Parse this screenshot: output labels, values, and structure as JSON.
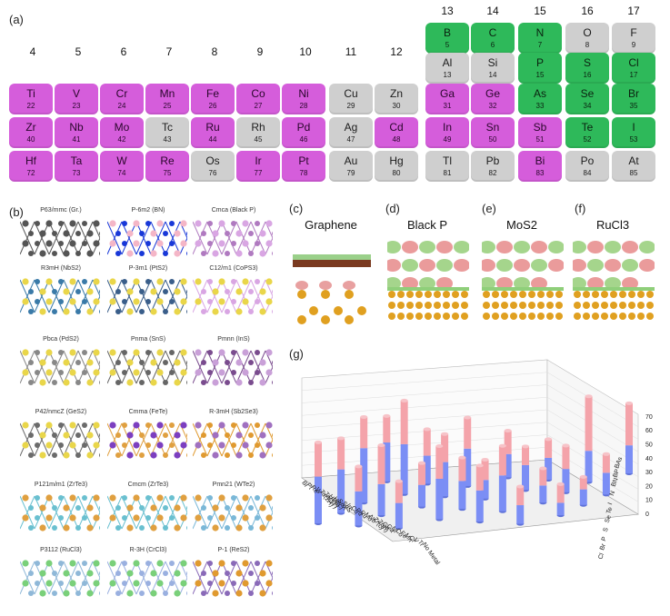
{
  "panels": {
    "a": "(a)",
    "b": "(b)",
    "c": "(c)",
    "d": "(d)",
    "e": "(e)",
    "f": "(f)",
    "g": "(g)"
  },
  "periodic_table": {
    "group_headers": [
      {
        "label": "4"
      },
      {
        "label": "5"
      },
      {
        "label": "6"
      },
      {
        "label": "7"
      },
      {
        "label": "8"
      },
      {
        "label": "9"
      },
      {
        "label": "10"
      },
      {
        "label": "11"
      },
      {
        "label": "12"
      },
      {
        "label": "13"
      },
      {
        "label": "14"
      },
      {
        "label": "15"
      },
      {
        "label": "16"
      },
      {
        "label": "17"
      }
    ],
    "elements": [
      {
        "symbol": "B",
        "number": "5",
        "category": "green"
      },
      {
        "symbol": "C",
        "number": "6",
        "category": "green"
      },
      {
        "symbol": "N",
        "number": "7",
        "category": "green"
      },
      {
        "symbol": "O",
        "number": "8",
        "category": "gray"
      },
      {
        "symbol": "F",
        "number": "9",
        "category": "gray"
      },
      {
        "symbol": "Al",
        "number": "13",
        "category": "gray"
      },
      {
        "symbol": "Si",
        "number": "14",
        "category": "gray"
      },
      {
        "symbol": "P",
        "number": "15",
        "category": "green"
      },
      {
        "symbol": "S",
        "number": "16",
        "category": "green"
      },
      {
        "symbol": "Cl",
        "number": "17",
        "category": "green"
      },
      {
        "symbol": "Ti",
        "number": "22",
        "category": "pink"
      },
      {
        "symbol": "V",
        "number": "23",
        "category": "pink"
      },
      {
        "symbol": "Cr",
        "number": "24",
        "category": "pink"
      },
      {
        "symbol": "Mn",
        "number": "25",
        "category": "pink"
      },
      {
        "symbol": "Fe",
        "number": "26",
        "category": "pink"
      },
      {
        "symbol": "Co",
        "number": "27",
        "category": "pink"
      },
      {
        "symbol": "Ni",
        "number": "28",
        "category": "pink"
      },
      {
        "symbol": "Cu",
        "number": "29",
        "category": "gray"
      },
      {
        "symbol": "Zn",
        "number": "30",
        "category": "gray"
      },
      {
        "symbol": "Ga",
        "number": "31",
        "category": "pink"
      },
      {
        "symbol": "Ge",
        "number": "32",
        "category": "pink"
      },
      {
        "symbol": "As",
        "number": "33",
        "category": "green"
      },
      {
        "symbol": "Se",
        "number": "34",
        "category": "green"
      },
      {
        "symbol": "Br",
        "number": "35",
        "category": "green"
      },
      {
        "symbol": "Zr",
        "number": "40",
        "category": "pink"
      },
      {
        "symbol": "Nb",
        "number": "41",
        "category": "pink"
      },
      {
        "symbol": "Mo",
        "number": "42",
        "category": "pink"
      },
      {
        "symbol": "Tc",
        "number": "43",
        "category": "gray"
      },
      {
        "symbol": "Ru",
        "number": "44",
        "category": "pink"
      },
      {
        "symbol": "Rh",
        "number": "45",
        "category": "gray"
      },
      {
        "symbol": "Pd",
        "number": "46",
        "category": "pink"
      },
      {
        "symbol": "Ag",
        "number": "47",
        "category": "gray"
      },
      {
        "symbol": "Cd",
        "number": "48",
        "category": "pink"
      },
      {
        "symbol": "In",
        "number": "49",
        "category": "pink"
      },
      {
        "symbol": "Sn",
        "number": "50",
        "category": "pink"
      },
      {
        "symbol": "Sb",
        "number": "51",
        "category": "pink"
      },
      {
        "symbol": "Te",
        "number": "52",
        "category": "green"
      },
      {
        "symbol": "I",
        "number": "53",
        "category": "green"
      },
      {
        "symbol": "Hf",
        "number": "72",
        "category": "pink"
      },
      {
        "symbol": "Ta",
        "number": "73",
        "category": "pink"
      },
      {
        "symbol": "W",
        "number": "74",
        "category": "pink"
      },
      {
        "symbol": "Re",
        "number": "75",
        "category": "pink"
      },
      {
        "symbol": "Os",
        "number": "76",
        "category": "gray"
      },
      {
        "symbol": "Ir",
        "number": "77",
        "category": "pink"
      },
      {
        "symbol": "Pt",
        "number": "78",
        "category": "pink"
      },
      {
        "symbol": "Au",
        "number": "79",
        "category": "gray"
      },
      {
        "symbol": "Hg",
        "number": "80",
        "category": "gray"
      },
      {
        "symbol": "Tl",
        "number": "81",
        "category": "gray"
      },
      {
        "symbol": "Pb",
        "number": "82",
        "category": "gray"
      },
      {
        "symbol": "Bi",
        "number": "83",
        "category": "pink"
      },
      {
        "symbol": "Po",
        "number": "84",
        "category": "gray"
      },
      {
        "symbol": "At",
        "number": "85",
        "category": "gray"
      }
    ],
    "colors": {
      "green": "#2eb95a",
      "pink": "#d55ddb",
      "gray": "#cfcfcf"
    }
  },
  "structures": [
    {
      "label": "P63/mmc (Gr.)"
    },
    {
      "label": "P-6m2 (BN)"
    },
    {
      "label": "Cmca (Black P)"
    },
    {
      "label": "R3mH (NbS2)"
    },
    {
      "label": "P-3m1 (PtS2)"
    },
    {
      "label": "C12/m1 (CoPS3)"
    },
    {
      "label": "Pbca (PdS2)"
    },
    {
      "label": "Pnma (SnS)"
    },
    {
      "label": "Pmnn (InS)"
    },
    {
      "label": "P42/nmcZ (GeS2)"
    },
    {
      "label": "Cmma (FeTe)"
    },
    {
      "label": "R-3mH (Sb2Se3)"
    },
    {
      "label": "P121m/m1 (ZrTe3)"
    },
    {
      "label": "Cmcm (ZrTe3)"
    },
    {
      "label": "Pmn21 (WTe2)"
    },
    {
      "label": "P3112 (RuCl3)"
    },
    {
      "label": "R-3H (CrCl3)"
    },
    {
      "label": "P-1 (ReS2)"
    }
  ],
  "dft_panels": [
    {
      "title": "Graphene"
    },
    {
      "title": "Black P"
    },
    {
      "title": "MoS2"
    },
    {
      "title": "RuCl3"
    }
  ],
  "chart_data": {
    "type": "bar3d",
    "title": "",
    "zlim": [
      0,
      70
    ],
    "zticks": [
      "0",
      "10",
      "20",
      "30",
      "40",
      "50",
      "60",
      "70"
    ],
    "x_labels": [
      "Bi",
      "Pt",
      "Re",
      "W",
      "Ta(2H)",
      "Ta(1T)",
      "Hf(h)",
      "Hf(c)",
      "SnX",
      "SnS",
      "In",
      "Cd",
      "Pd",
      "Ru",
      "Mo",
      "Nb",
      "Zr(c)",
      "Zr(h)",
      "Ge",
      "Ga",
      "Ni",
      "Co",
      "Fe",
      "Mn",
      "Cr",
      "V",
      "Ti",
      "No Metal"
    ],
    "y_labels": [
      "BAs",
      "BP",
      "BN",
      "N",
      "I",
      "Te",
      "Se",
      "S",
      "P",
      "Br",
      "Cl"
    ],
    "series": [
      {
        "name": "lower (blue)",
        "color": "#7b8ef5"
      },
      {
        "name": "upper (pink)",
        "color": "#f4a3aa"
      }
    ],
    "bars": [
      {
        "x": "Bi",
        "total": 52,
        "lower": 30
      },
      {
        "x": "Pt",
        "total": 48,
        "lower": 28
      },
      {
        "x": "Re",
        "total": 55,
        "lower": 35
      },
      {
        "x": "W",
        "total": 42,
        "lower": 25
      },
      {
        "x": "Ta(2H)",
        "total": 38,
        "lower": 22
      },
      {
        "x": "Ta(1T)",
        "total": 45,
        "lower": 20
      },
      {
        "x": "Hf(h)",
        "total": 60,
        "lower": 32
      },
      {
        "x": "Hf(c)",
        "total": 35,
        "lower": 18
      },
      {
        "x": "SnX",
        "total": 30,
        "lower": 16
      },
      {
        "x": "SnS",
        "total": 28,
        "lower": 14
      },
      {
        "x": "In",
        "total": 40,
        "lower": 22
      },
      {
        "x": "Cd",
        "total": 44,
        "lower": 24
      },
      {
        "x": "Pd",
        "total": 47,
        "lower": 26
      },
      {
        "x": "Ru",
        "total": 33,
        "lower": 18
      },
      {
        "x": "Mo",
        "total": 25,
        "lower": 12
      },
      {
        "x": "Nb",
        "total": 30,
        "lower": 15
      },
      {
        "x": "Zr(c)",
        "total": 36,
        "lower": 20
      },
      {
        "x": "Zr(h)",
        "total": 42,
        "lower": 23
      },
      {
        "x": "Ge",
        "total": 28,
        "lower": 16
      },
      {
        "x": "Ga",
        "total": 26,
        "lower": 14
      },
      {
        "x": "Ni",
        "total": 24,
        "lower": 12
      },
      {
        "x": "Co",
        "total": 22,
        "lower": 11
      },
      {
        "x": "Fe",
        "total": 30,
        "lower": 15
      },
      {
        "x": "Mn",
        "total": 55,
        "lower": 20
      },
      {
        "x": "Cr",
        "total": 20,
        "lower": 8
      },
      {
        "x": "V",
        "total": 18,
        "lower": 10
      },
      {
        "x": "Ti",
        "total": 26,
        "lower": 14
      },
      {
        "x": "No Metal",
        "total": 45,
        "lower": 18
      }
    ]
  }
}
